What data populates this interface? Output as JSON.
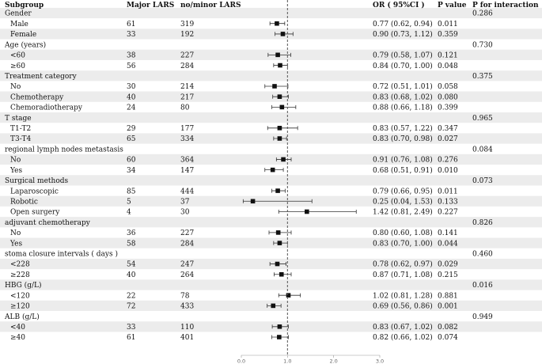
{
  "chart_data": {
    "type": "forest",
    "columns": {
      "subgroup": "Subgroup",
      "major": "Major LARS",
      "minor": "no/minor LARS",
      "or": "OR ( 95%CI )",
      "p_prefix": "P",
      "p_suffix": "value",
      "pint_prefix": "P",
      "pint_suffix": "for interaction"
    },
    "x_axis": {
      "min": 0,
      "max": 3,
      "ticks": [
        "0.0",
        "1.0",
        "2.0",
        "3.0"
      ],
      "reference_line": 1.0
    },
    "rows": [
      {
        "kind": "group",
        "label": "Gender",
        "p_interaction": "0.286"
      },
      {
        "kind": "item",
        "label": "Male",
        "major": "61",
        "minor": "319",
        "or_text": "0.77 (0.62, 0.94)",
        "p": "0.011",
        "or": 0.77,
        "lo": 0.62,
        "hi": 0.94
      },
      {
        "kind": "item",
        "label": "Female",
        "major": "33",
        "minor": "192",
        "or_text": "0.90 (0.73, 1.12)",
        "p": "0.359",
        "or": 0.9,
        "lo": 0.73,
        "hi": 1.12
      },
      {
        "kind": "group",
        "label": "Age (years)",
        "p_interaction": "0.730"
      },
      {
        "kind": "item",
        "label": "<60",
        "major": "38",
        "minor": "227",
        "or_text": "0.79 (0.58, 1.07)",
        "p": "0.121",
        "or": 0.79,
        "lo": 0.58,
        "hi": 1.07
      },
      {
        "kind": "item",
        "label": "≥60",
        "major": "56",
        "minor": "284",
        "or_text": "0.84 (0.70, 1.00)",
        "p": "0.048",
        "or": 0.84,
        "lo": 0.7,
        "hi": 1.0
      },
      {
        "kind": "group",
        "label": "Treatment category",
        "p_interaction": "0.375"
      },
      {
        "kind": "item",
        "label": "No",
        "major": "30",
        "minor": "214",
        "or_text": "0.72 (0.51, 1.01)",
        "p": "0.058",
        "or": 0.72,
        "lo": 0.51,
        "hi": 1.01
      },
      {
        "kind": "item",
        "label": "Chemotherapy",
        "major": "40",
        "minor": "217",
        "or_text": "0.83 (0.68, 1.02)",
        "p": "0.080",
        "or": 0.83,
        "lo": 0.68,
        "hi": 1.02
      },
      {
        "kind": "item",
        "label": "Chemoradiotherapy",
        "major": "24",
        "minor": "80",
        "or_text": "0.88 (0.66, 1.18)",
        "p": "0.399",
        "or": 0.88,
        "lo": 0.66,
        "hi": 1.18
      },
      {
        "kind": "group",
        "label": "T stage",
        "p_interaction": "0.965"
      },
      {
        "kind": "item",
        "label": "T1-T2",
        "major": "29",
        "minor": "177",
        "or_text": "0.83 (0.57, 1.22)",
        "p": "0.347",
        "or": 0.83,
        "lo": 0.57,
        "hi": 1.22
      },
      {
        "kind": "item",
        "label": "T3-T4",
        "major": "65",
        "minor": "334",
        "or_text": "0.83 (0.70, 0.98)",
        "p": "0.027",
        "or": 0.83,
        "lo": 0.7,
        "hi": 0.98
      },
      {
        "kind": "group",
        "label": "regional lymph nodes metastasis",
        "p_interaction": "0.084"
      },
      {
        "kind": "item",
        "label": "No",
        "major": "60",
        "minor": "364",
        "or_text": "0.91 (0.76, 1.08)",
        "p": "0.276",
        "or": 0.91,
        "lo": 0.76,
        "hi": 1.08
      },
      {
        "kind": "item",
        "label": "Yes",
        "major": "34",
        "minor": "147",
        "or_text": "0.68 (0.51, 0.91)",
        "p": "0.010",
        "or": 0.68,
        "lo": 0.51,
        "hi": 0.91
      },
      {
        "kind": "group",
        "label": "Surgical methods",
        "p_interaction": "0.073"
      },
      {
        "kind": "item",
        "label": "Laparoscopic",
        "major": "85",
        "minor": "444",
        "or_text": "0.79 (0.66, 0.95)",
        "p": "0.011",
        "or": 0.79,
        "lo": 0.66,
        "hi": 0.95
      },
      {
        "kind": "item",
        "label": "Robotic",
        "major": "5",
        "minor": "37",
        "or_text": "0.25 (0.04, 1.53)",
        "p": "0.133",
        "or": 0.25,
        "lo": 0.04,
        "hi": 1.53
      },
      {
        "kind": "item",
        "label": "Open surgery",
        "major": "4",
        "minor": "30",
        "or_text": "1.42 (0.81, 2.49)",
        "p": "0.227",
        "or": 1.42,
        "lo": 0.81,
        "hi": 2.49
      },
      {
        "kind": "group",
        "label": "adjuvant chemotherapy",
        "p_interaction": "0.826"
      },
      {
        "kind": "item",
        "label": "No",
        "major": "36",
        "minor": "227",
        "or_text": "0.80 (0.60, 1.08)",
        "p": "0.141",
        "or": 0.8,
        "lo": 0.6,
        "hi": 1.08
      },
      {
        "kind": "item",
        "label": "Yes",
        "major": "58",
        "minor": "284",
        "or_text": "0.83 (0.70, 1.00)",
        "p": "0.044",
        "or": 0.83,
        "lo": 0.7,
        "hi": 1.0
      },
      {
        "kind": "group",
        "label": "stoma closure intervals ( days )",
        "p_interaction": "0.460"
      },
      {
        "kind": "item",
        "label": "<228",
        "major": "54",
        "minor": "247",
        "or_text": "0.78 (0.62, 0.97)",
        "p": "0.029",
        "or": 0.78,
        "lo": 0.62,
        "hi": 0.97
      },
      {
        "kind": "item",
        "label": "≥228",
        "major": "40",
        "minor": "264",
        "or_text": "0.87 (0.71, 1.08)",
        "p": "0.215",
        "or": 0.87,
        "lo": 0.71,
        "hi": 1.08
      },
      {
        "kind": "group",
        "label": "HBG (g/L)",
        "p_interaction": "0.016"
      },
      {
        "kind": "item",
        "label": "<120",
        "major": "22",
        "minor": "78",
        "or_text": "1.02 (0.81, 1.28)",
        "p": "0.881",
        "or": 1.02,
        "lo": 0.81,
        "hi": 1.28
      },
      {
        "kind": "item",
        "label": "≥120",
        "major": "72",
        "minor": "433",
        "or_text": "0.69 (0.56, 0.86)",
        "p": "0.001",
        "or": 0.69,
        "lo": 0.56,
        "hi": 0.86
      },
      {
        "kind": "group",
        "label": "ALB (g/L)",
        "p_interaction": "0.949"
      },
      {
        "kind": "item",
        "label": "<40",
        "major": "33",
        "minor": "110",
        "or_text": "0.83 (0.67, 1.02)",
        "p": "0.082",
        "or": 0.83,
        "lo": 0.67,
        "hi": 1.02
      },
      {
        "kind": "item",
        "label": "≥40",
        "major": "61",
        "minor": "401",
        "or_text": "0.82 (0.66, 1.02)",
        "p": "0.074",
        "or": 0.82,
        "lo": 0.66,
        "hi": 1.02
      }
    ],
    "colors": {
      "stripe": "#ececec",
      "marker": "#111111",
      "ci_line": "#333333",
      "ref_line": "#555555"
    }
  }
}
